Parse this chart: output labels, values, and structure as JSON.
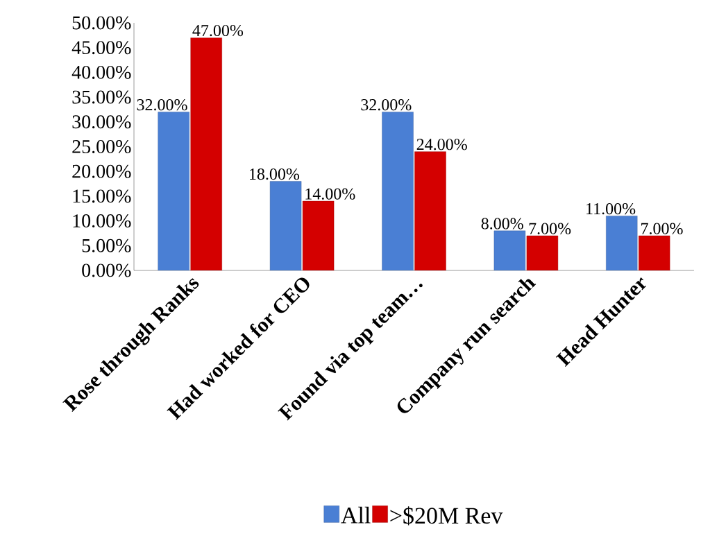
{
  "chart_data": {
    "type": "bar",
    "categories": [
      "Rose through Ranks",
      "Had worked for CEO",
      "Found via top team…",
      "Company run search",
      "Head Hunter"
    ],
    "series": [
      {
        "name": "All",
        "color": "#4a7fd4",
        "values": [
          32,
          18,
          32,
          8,
          11
        ],
        "value_labels": [
          "32.00%",
          "18.00%",
          "32.00%",
          "8.00%",
          "11.00%"
        ]
      },
      {
        "name": ">$20M Rev",
        "color": "#d40000",
        "values": [
          47,
          14,
          24,
          7,
          7
        ],
        "value_labels": [
          "47.00%",
          "14.00%",
          "24.00%",
          "7.00%",
          "7.00%"
        ]
      }
    ],
    "ylim": [
      0,
      50
    ],
    "yticks": [
      {
        "value": 0,
        "label": "0.00%"
      },
      {
        "value": 5,
        "label": "5.00%"
      },
      {
        "value": 10,
        "label": "10.00%"
      },
      {
        "value": 15,
        "label": "15.00%"
      },
      {
        "value": 20,
        "label": "20.00%"
      },
      {
        "value": 25,
        "label": "25.00%"
      },
      {
        "value": 30,
        "label": "30.00%"
      },
      {
        "value": 35,
        "label": "35.00%"
      },
      {
        "value": 40,
        "label": "40.00%"
      },
      {
        "value": 45,
        "label": "45.00%"
      },
      {
        "value": 50,
        "label": "50.00%"
      }
    ],
    "grid": false,
    "legend": "bottom"
  }
}
